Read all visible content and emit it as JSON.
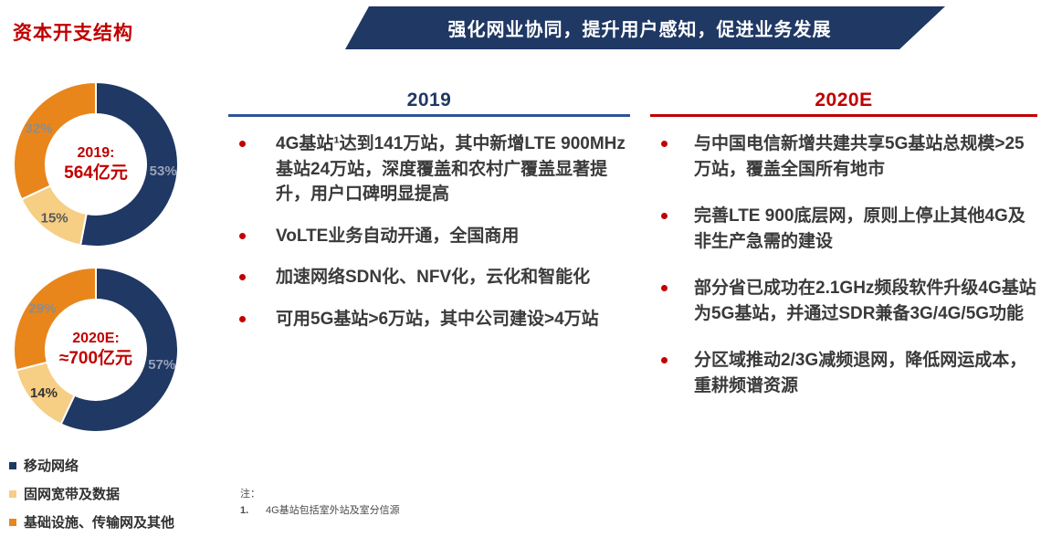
{
  "title": "资本开支结构",
  "banner": {
    "text": "强化网业协同，提升用户感知，促进业务发展"
  },
  "colors": {
    "navy": "#1F3864",
    "red": "#C00000",
    "orange": "#E8861C",
    "yellow": "#F6CE84",
    "text": "#3A3A3A",
    "rule_blue": "#2F5496"
  },
  "chart_data": [
    {
      "type": "pie",
      "subtype": "donut",
      "center": {
        "line1": "2019:",
        "line2": "564亿元"
      },
      "legend_position": "bottom-left",
      "slices": [
        {
          "name": "移动网络",
          "value": 53,
          "label": "53%",
          "color": "#1F3864",
          "label_color": "#98A2B8"
        },
        {
          "name": "固网宽带及数据",
          "value": 15,
          "label": "15%",
          "color": "#F6CE84",
          "label_color": "#595959"
        },
        {
          "name": "基础设施、传输网及其他",
          "value": 32,
          "label": "32%",
          "color": "#E8861C",
          "label_color": "#8C8C8C"
        }
      ]
    },
    {
      "type": "pie",
      "subtype": "donut",
      "center": {
        "line1": "2020E:",
        "line2": "≈700亿元"
      },
      "legend_position": "bottom-left",
      "slices": [
        {
          "name": "移动网络",
          "value": 57,
          "label": "57%",
          "color": "#1F3864",
          "label_color": "#98A2B8"
        },
        {
          "name": "固网宽带及数据",
          "value": 14,
          "label": "14%",
          "color": "#F6CE84",
          "label_color": "#333333"
        },
        {
          "name": "基础设施、传输网及其他",
          "value": 29,
          "label": "29%",
          "color": "#E8861C",
          "label_color": "#8C8C8C"
        }
      ]
    }
  ],
  "legend": {
    "items": [
      {
        "label": "移动网络",
        "color": "#1F3864"
      },
      {
        "label": "固网宽带及数据",
        "color": "#F6CE84"
      },
      {
        "label": "基础设施、传输网及其他",
        "color": "#E8861C"
      }
    ]
  },
  "columns": [
    {
      "header": "2019",
      "bullets": [
        "4G基站¹达到141万站，其中新增LTE 900MHz基站24万站，深度覆盖和农村广覆盖显著提升，用户口碑明显提高",
        "VoLTE业务自动开通，全国商用",
        "加速网络SDN化、NFV化，云化和智能化",
        "可用5G基站>6万站，其中公司建设>4万站"
      ]
    },
    {
      "header": "2020E",
      "bullets": [
        "与中国电信新增共建共享5G基站总规模>25万站，覆盖全国所有地市",
        "完善LTE 900底层网，原则上停止其他4G及非生产急需的建设",
        "部分省已成功在2.1GHz频段软件升级4G基站为5G基站，并通过SDR兼备3G/4G/5G功能",
        "分区域推动2/3G减频退网，降低网运成本，重耕频谱资源"
      ]
    }
  ],
  "footnote": {
    "label": "注：",
    "num": "1.",
    "text": "4G基站包括室外站及室分信源"
  }
}
